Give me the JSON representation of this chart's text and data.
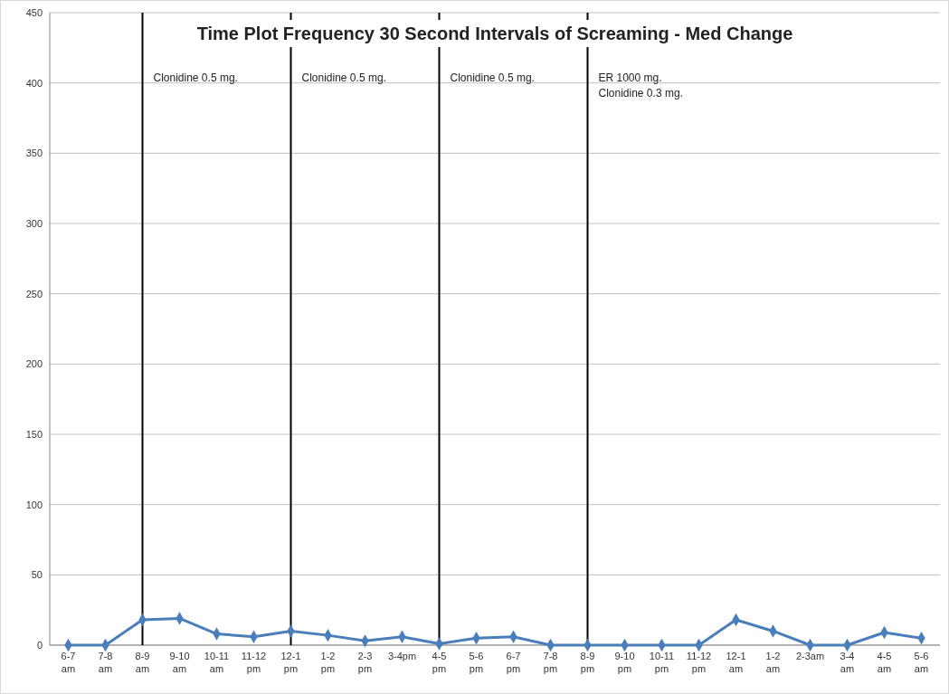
{
  "chart_data": {
    "type": "line",
    "title": "Time Plot Frequency 30 Second Intervals of Screaming - Med Change",
    "categories": [
      "6-7 am",
      "7-8 am",
      "8-9 am",
      "9-10 am",
      "10-11 am",
      "11-12 pm",
      "12-1 pm",
      "1-2 pm",
      "2-3 pm",
      "3-4pm",
      "4-5 pm",
      "5-6 pm",
      "6-7 pm",
      "7-8 pm",
      "8-9 pm",
      "9-10 pm",
      "10-11 pm",
      "11-12 pm",
      "12-1 am",
      "1-2 am",
      "2-3am",
      "3-4 am",
      "4-5 am",
      "5-6 am"
    ],
    "series": [
      {
        "color": "#4a7ebb",
        "values": [
          0,
          0,
          18,
          19,
          8,
          6,
          10,
          7,
          3,
          6,
          1,
          5,
          6,
          0,
          0,
          0,
          0,
          0,
          18,
          10,
          0,
          0,
          9,
          5
        ]
      }
    ],
    "ylim": [
      0,
      450
    ],
    "yticks": [
      0,
      50,
      100,
      150,
      200,
      250,
      300,
      350,
      400,
      450
    ],
    "grid": "y",
    "marker": "diamond",
    "line_style": "solid",
    "ref_lines": [
      {
        "axis": "x",
        "value": "8-9 am",
        "label": "Clonidine 0.5 mg.",
        "color": "#000000"
      },
      {
        "axis": "x",
        "value": "12-1 pm",
        "label": "Clonidine 0.5 mg.",
        "color": "#000000"
      },
      {
        "axis": "x",
        "value": "4-5 pm",
        "label": "Clonidine 0.5 mg.",
        "color": "#000000"
      },
      {
        "axis": "x",
        "value": "8-9 pm",
        "label": "ER 1000 mg.\nClonidine 0.3 mg.",
        "color": "#000000"
      }
    ]
  }
}
